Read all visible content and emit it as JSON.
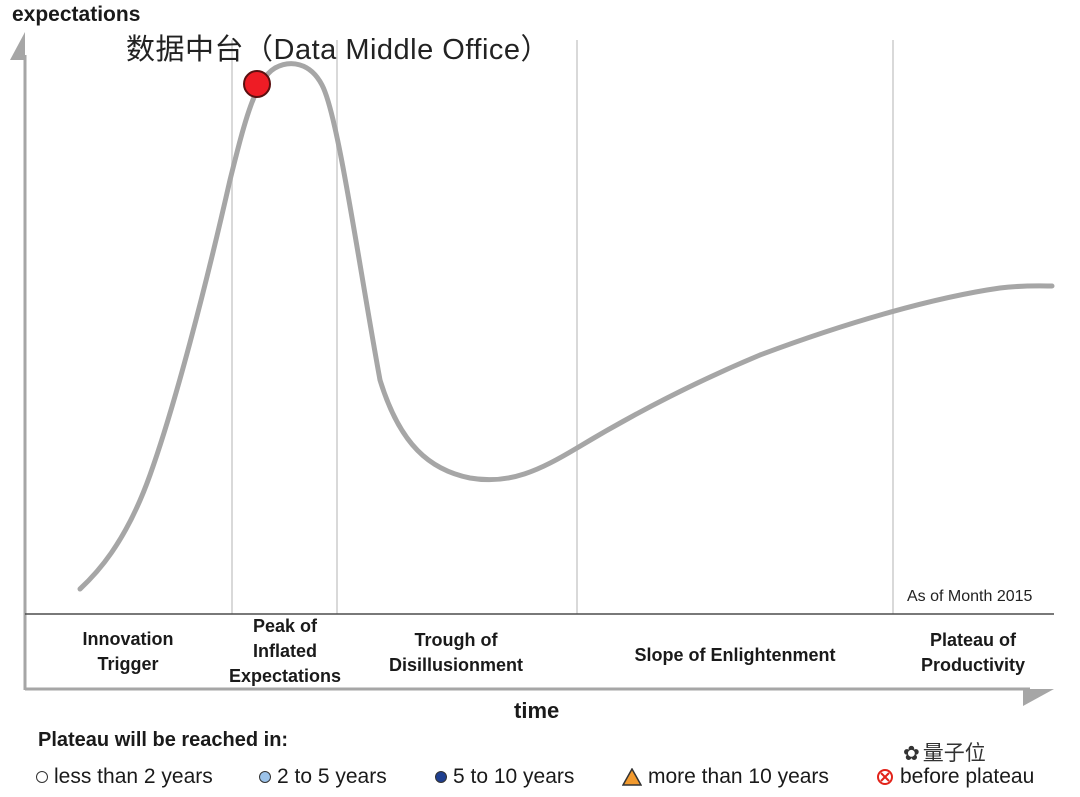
{
  "axes": {
    "y_label": "expectations",
    "x_label": "time"
  },
  "technology": {
    "label": "数据中台（Data Middle Office）",
    "marker_color": "#ee1c25",
    "phase": "Peak of Inflated Expectations"
  },
  "as_of": "As of Month 2015",
  "phases": [
    {
      "lines": [
        "Innovation",
        "Trigger"
      ]
    },
    {
      "lines": [
        "Peak of",
        "Inflated",
        "Expectations"
      ]
    },
    {
      "lines": [
        "Trough of",
        "Disillusionment"
      ]
    },
    {
      "lines": [
        "Slope of Enlightenment"
      ]
    },
    {
      "lines": [
        "Plateau of",
        "Productivity"
      ]
    }
  ],
  "legend": {
    "title": "Plateau will be reached in:",
    "items": [
      {
        "label": "less than 2 years",
        "shape": "circle",
        "color": "#ffffff"
      },
      {
        "label": "2 to 5 years",
        "shape": "circle",
        "color": "#9cc3ea"
      },
      {
        "label": "5 to 10 years",
        "shape": "circle",
        "color": "#1f3f8f"
      },
      {
        "label": "more than 10 years",
        "shape": "triangle",
        "color": "#f29a2e"
      },
      {
        "label": "before plateau",
        "shape": "crossed-circle",
        "color": "#e2231a"
      }
    ]
  },
  "watermark": "量子位",
  "colors": {
    "curve": "#a6a6a6",
    "axis": "#a6a6a6",
    "divider": "#d9d9d9"
  }
}
